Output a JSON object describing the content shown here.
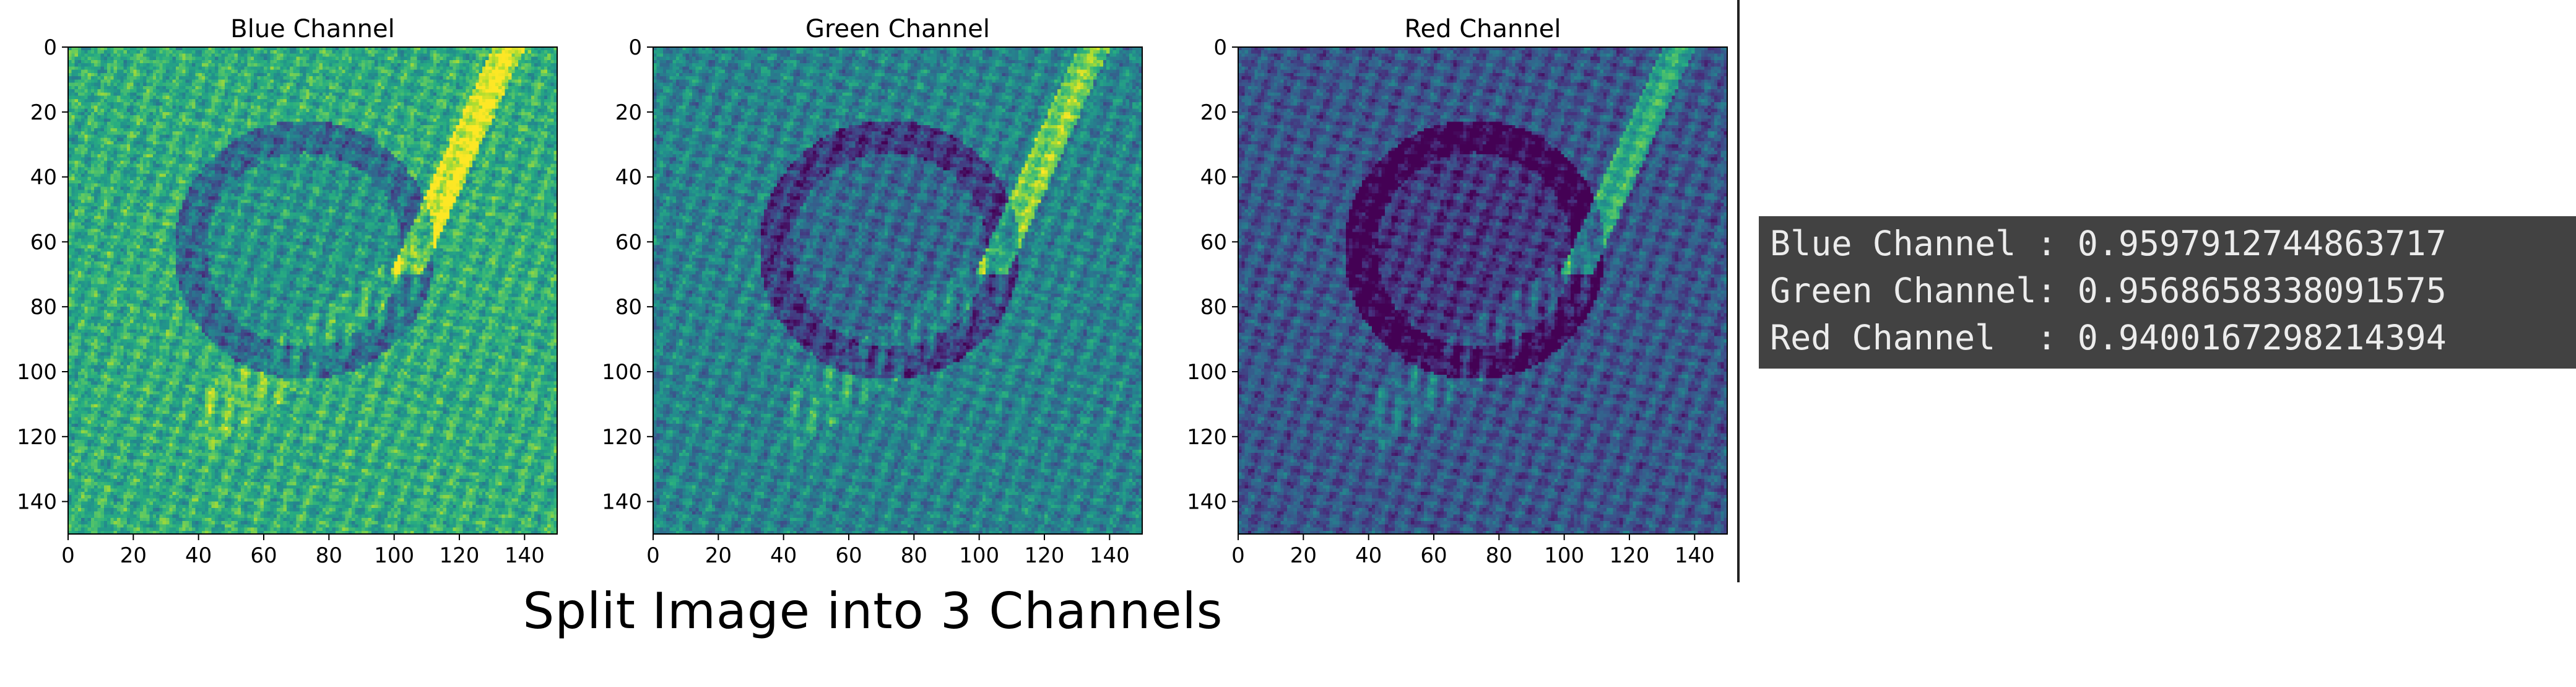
{
  "chart_data": [
    {
      "type": "heatmap",
      "title": "Blue Channel",
      "colormap": "viridis",
      "xlim": [
        0,
        150
      ],
      "ylim": [
        150,
        0
      ],
      "xticks": [
        0,
        20,
        40,
        60,
        80,
        100,
        120,
        140
      ],
      "yticks": [
        0,
        20,
        40,
        60,
        80,
        100,
        120,
        140
      ],
      "intensity": "high",
      "grid": false
    },
    {
      "type": "heatmap",
      "title": "Green Channel",
      "colormap": "viridis",
      "xlim": [
        0,
        150
      ],
      "ylim": [
        150,
        0
      ],
      "xticks": [
        0,
        20,
        40,
        60,
        80,
        100,
        120,
        140
      ],
      "yticks": [
        0,
        20,
        40,
        60,
        80,
        100,
        120,
        140
      ],
      "intensity": "medium",
      "grid": false
    },
    {
      "type": "heatmap",
      "title": "Red Channel",
      "colormap": "viridis",
      "xlim": [
        0,
        150
      ],
      "ylim": [
        150,
        0
      ],
      "xticks": [
        0,
        20,
        40,
        60,
        80,
        100,
        120,
        140
      ],
      "yticks": [
        0,
        20,
        40,
        60,
        80,
        100,
        120,
        140
      ],
      "intensity": "low",
      "grid": false
    }
  ],
  "caption": "Split Image into 3 Channels",
  "console": {
    "lines": [
      "Blue Channel : 0.9597912744863717",
      "Green Channel: 0.9568658338091575",
      "Red Channel  : 0.9400167298214394"
    ]
  },
  "colors": {
    "console_bg": "#424242",
    "console_text": "#ececec",
    "viridis": [
      "#440154",
      "#472d7b",
      "#3b528b",
      "#2c728e",
      "#21918c",
      "#28ae80",
      "#5ec962",
      "#addc30",
      "#fde725"
    ]
  }
}
